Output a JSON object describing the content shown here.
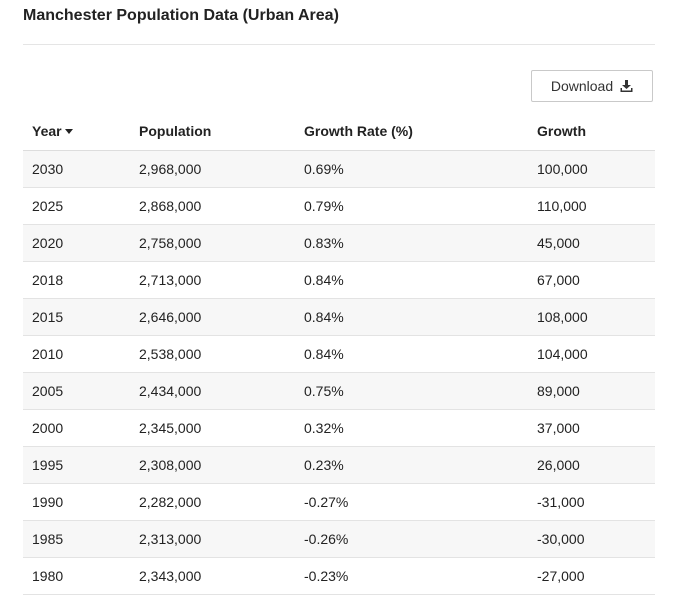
{
  "page": {
    "title": "Manchester Population Data (Urban Area)"
  },
  "download": {
    "label": "Download",
    "icon": "download-icon"
  },
  "table": {
    "columns": [
      "Year",
      "Population",
      "Growth Rate (%)",
      "Growth"
    ],
    "sort": {
      "column": "Year",
      "direction": "descending"
    },
    "rows": [
      {
        "year": "2030",
        "population": "2,968,000",
        "growth_rate": "0.69%",
        "growth": "100,000",
        "trend": "positive"
      },
      {
        "year": "2025",
        "population": "2,868,000",
        "growth_rate": "0.79%",
        "growth": "110,000",
        "trend": "positive"
      },
      {
        "year": "2020",
        "population": "2,758,000",
        "growth_rate": "0.83%",
        "growth": "45,000",
        "trend": "positive"
      },
      {
        "year": "2018",
        "population": "2,713,000",
        "growth_rate": "0.84%",
        "growth": "67,000",
        "trend": "positive"
      },
      {
        "year": "2015",
        "population": "2,646,000",
        "growth_rate": "0.84%",
        "growth": "108,000",
        "trend": "positive"
      },
      {
        "year": "2010",
        "population": "2,538,000",
        "growth_rate": "0.84%",
        "growth": "104,000",
        "trend": "positive"
      },
      {
        "year": "2005",
        "population": "2,434,000",
        "growth_rate": "0.75%",
        "growth": "89,000",
        "trend": "positive"
      },
      {
        "year": "2000",
        "population": "2,345,000",
        "growth_rate": "0.32%",
        "growth": "37,000",
        "trend": "positive"
      },
      {
        "year": "1995",
        "population": "2,308,000",
        "growth_rate": "0.23%",
        "growth": "26,000",
        "trend": "positive"
      },
      {
        "year": "1990",
        "population": "2,282,000",
        "growth_rate": "-0.27%",
        "growth": "-31,000",
        "trend": "negative"
      },
      {
        "year": "1985",
        "population": "2,313,000",
        "growth_rate": "-0.26%",
        "growth": "-30,000",
        "trend": "negative"
      },
      {
        "year": "1980",
        "population": "2,343,000",
        "growth_rate": "-0.23%",
        "growth": "-27,000",
        "trend": "negative"
      }
    ]
  },
  "colors": {
    "positive_rate": "#3a7a26",
    "negative_rate": "#d6332a",
    "stripe": "#f7f7f7"
  }
}
